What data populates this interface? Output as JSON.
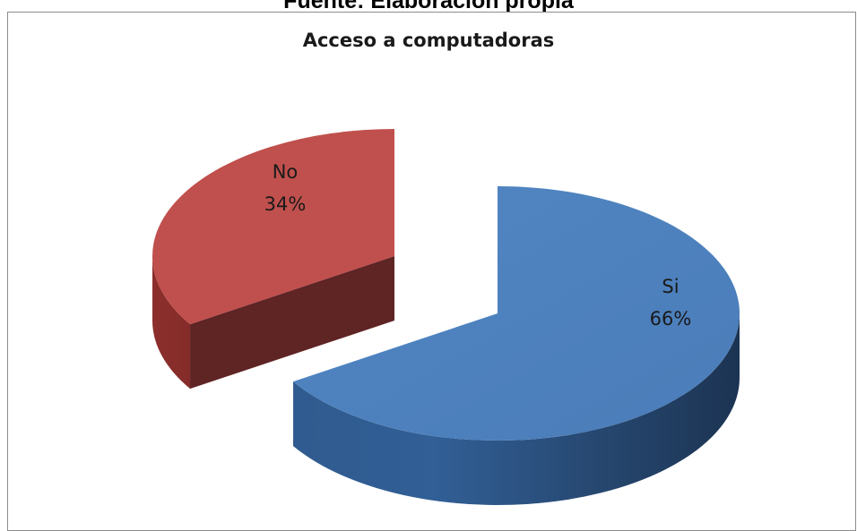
{
  "caption": "Fuente: Elaboración propia",
  "chart_data": {
    "type": "pie",
    "title": "Acceso a computadoras",
    "three_d": true,
    "exploded": true,
    "slices": [
      {
        "label": "Si",
        "value": 66,
        "percent_label": "66%",
        "color": "#4F81BD"
      },
      {
        "label": "No",
        "value": 34,
        "percent_label": "34%",
        "color": "#C0504D"
      }
    ]
  }
}
